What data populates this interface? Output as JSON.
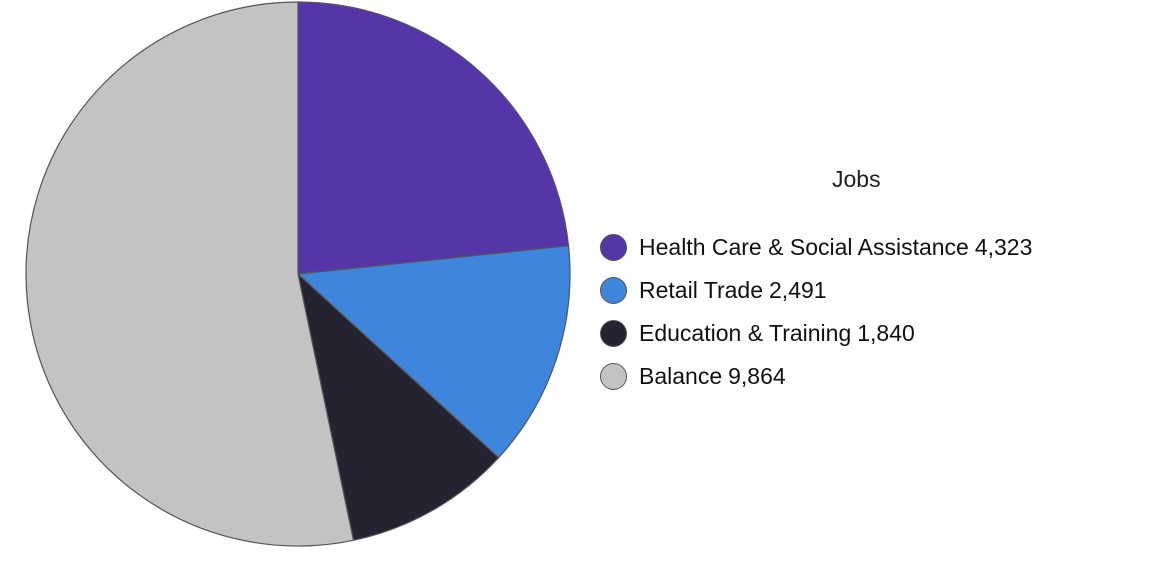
{
  "chart_data": {
    "type": "pie",
    "legend_title": "Jobs",
    "legend_position": "right",
    "slices": [
      {
        "label": "Health Care & Social Assistance",
        "value": 4323,
        "display_value": "4,323",
        "color": "#5535a8"
      },
      {
        "label": "Retail Trade",
        "value": 2491,
        "display_value": "2,491",
        "color": "#3e85de"
      },
      {
        "label": "Education & Training",
        "value": 1840,
        "display_value": "1,840",
        "color": "#232331"
      },
      {
        "label": "Balance",
        "value": 9864,
        "display_value": "9,864",
        "color": "#c3c3c3"
      }
    ],
    "start_angle": "12 o'clock",
    "direction": "clockwise",
    "slice_border_color": "#555555"
  }
}
